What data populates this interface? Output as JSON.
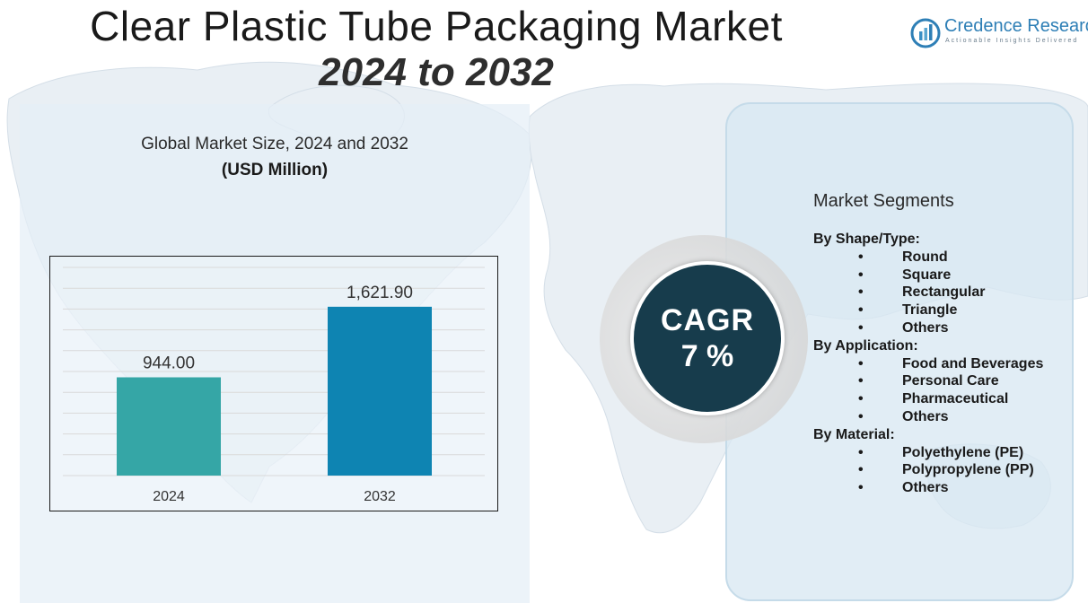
{
  "header": {
    "title": "Clear Plastic Tube Packaging Market",
    "subtitle": "2024 to 2032"
  },
  "logo": {
    "name": "Credence Research",
    "tagline": "Actionable Insights Delivered",
    "icon": "credence-logo-icon"
  },
  "chart_data": {
    "type": "bar",
    "title": "Global Market Size,  2024 and 2032",
    "unit_label": "(USD Million)",
    "categories": [
      "2024",
      "2032"
    ],
    "values": [
      944.0,
      1621.9
    ],
    "value_labels": [
      "944.00",
      "1,621.90"
    ],
    "colors": [
      "#35a6a6",
      "#0e84b2"
    ],
    "ylim": [
      0,
      2000
    ],
    "grid": true,
    "xlabel": "",
    "ylabel": ""
  },
  "cagr": {
    "label": "CAGR",
    "value": "7 %"
  },
  "segments": {
    "title": "Market Segments",
    "groups": [
      {
        "heading": "By Shape/Type:",
        "items": [
          "Round",
          "Square",
          "Rectangular",
          "Triangle",
          "Others"
        ]
      },
      {
        "heading": "By Application:",
        "items": [
          "Food and Beverages",
          "Personal Care",
          "Pharmaceutical",
          "Others"
        ]
      },
      {
        "heading": "By Material:",
        "items": [
          "Polyethylene (PE)",
          "Polypropylene (PP)",
          "Others"
        ]
      }
    ],
    "bullet": "•"
  }
}
